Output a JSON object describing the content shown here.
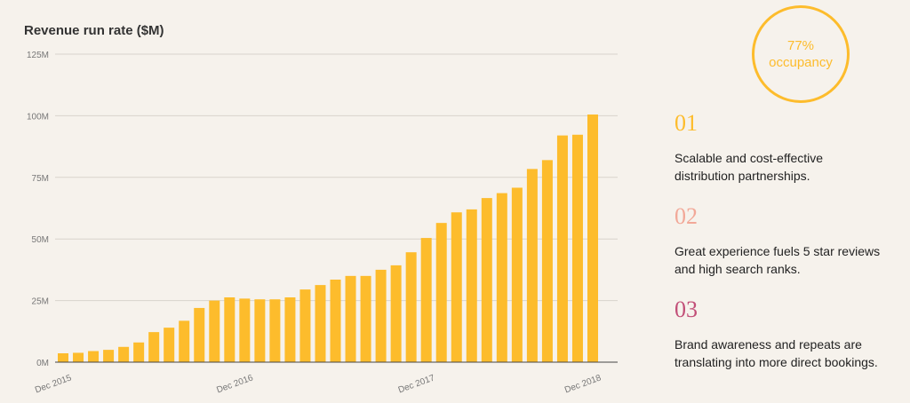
{
  "chart_data": {
    "type": "bar",
    "title": "Revenue run rate ($M)",
    "xlabel": "",
    "ylabel": "",
    "ylim": [
      0,
      125
    ],
    "yticks": [
      "0M",
      "25M",
      "50M",
      "75M",
      "100M",
      "125M"
    ],
    "ytick_values": [
      0,
      25,
      50,
      75,
      100,
      125
    ],
    "xtick_labels": [
      {
        "index": 0,
        "label": "Dec 2015"
      },
      {
        "index": 12,
        "label": "Dec 2016"
      },
      {
        "index": 24,
        "label": "Dec 2017"
      },
      {
        "index": 35,
        "label": "Dec 2018"
      }
    ],
    "grid": true,
    "bar_color": "#fdbc2c",
    "values": [
      3.6,
      3.8,
      4.5,
      5.0,
      6.2,
      8.0,
      12.2,
      14.0,
      16.8,
      22.0,
      25.0,
      26.3,
      25.8,
      25.5,
      25.5,
      26.3,
      29.5,
      31.3,
      33.5,
      35.0,
      35.0,
      37.5,
      39.3,
      44.6,
      50.4,
      56.5,
      60.8,
      62.0,
      66.6,
      68.6,
      70.8,
      78.4,
      82.0,
      92.0,
      92.3,
      100.5
    ]
  },
  "occupancy": {
    "value": "77%",
    "label": "occupancy",
    "color": "#fdbc2c"
  },
  "highlights": [
    {
      "number": "01",
      "text_line1": "Scalable and cost-effective",
      "text_line2": "distribution partnerships.",
      "color": "#fdbc2c"
    },
    {
      "number": "02",
      "text_line1": "Great experience fuels 5 star reviews",
      "text_line2": "and high search ranks.",
      "color": "#f2a898"
    },
    {
      "number": "03",
      "text_line1": "Brand awareness and repeats are",
      "text_line2": "translating into more direct bookings.",
      "color": "#c24f78"
    }
  ]
}
